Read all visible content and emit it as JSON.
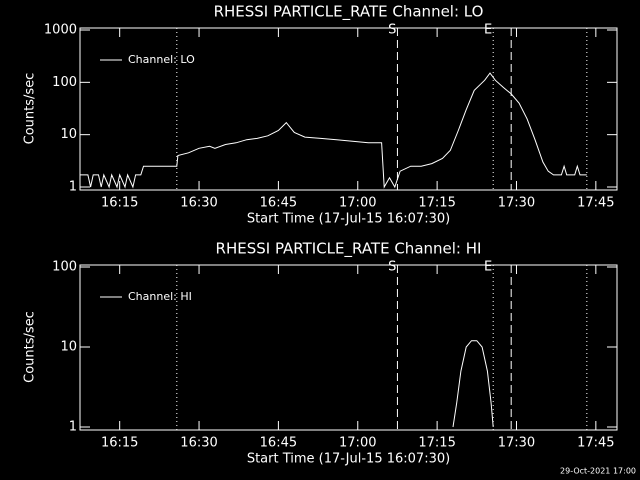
{
  "chart_data": [
    {
      "type": "line",
      "title": "RHESSI PARTICLE_RATE Channel: LO",
      "xlabel": "Start Time (17-Jul-15 16:07:30)",
      "ylabel": "Counts/sec",
      "x": [
        7.5,
        9,
        9.5,
        10,
        11,
        11.5,
        12,
        13,
        13.5,
        14.5,
        15,
        16,
        16.5,
        17.5,
        18,
        19,
        19.5,
        22,
        24,
        25.8,
        26,
        28,
        30,
        32,
        33,
        35,
        37,
        39,
        41,
        43,
        45,
        46.5,
        48,
        50,
        53,
        56,
        59,
        62,
        64.5,
        65,
        66,
        67,
        68,
        70,
        72,
        74,
        76,
        77.5,
        79,
        80.5,
        82,
        84,
        85,
        86,
        87.5,
        89,
        90.5,
        92,
        93.5,
        95,
        96,
        97,
        98.5,
        99,
        99.5,
        101,
        101.5,
        102,
        103.3
      ],
      "series": [
        {
          "name": "Channel: LO",
          "color": "#ffffff",
          "values": [
            1.7,
            1.7,
            1,
            1.7,
            1.7,
            1,
            1.7,
            1,
            1.7,
            1,
            1.7,
            1,
            1.7,
            1,
            1.7,
            1.7,
            2.5,
            2.5,
            2.5,
            2.5,
            4,
            4.5,
            5.5,
            6,
            5.5,
            6.5,
            7,
            8,
            8.5,
            9.5,
            12,
            17,
            11,
            9,
            8.5,
            8,
            7.5,
            7,
            7,
            1,
            1.5,
            1,
            2,
            2.5,
            2.5,
            2.8,
            3.5,
            5,
            12,
            30,
            70,
            110,
            150,
            110,
            80,
            60,
            40,
            20,
            8,
            3,
            2,
            1.7,
            1.7,
            2.5,
            1.7,
            1.7,
            2.5,
            1.7,
            1.7
          ]
        }
      ],
      "xlim": [
        7.5,
        109
      ],
      "ylim": [
        1,
        1000
      ],
      "ylog": true,
      "xticks": [
        {
          "value": 15,
          "label": "16:15"
        },
        {
          "value": 30,
          "label": "16:30"
        },
        {
          "value": 45,
          "label": "16:45"
        },
        {
          "value": 60,
          "label": "17:00"
        },
        {
          "value": 75,
          "label": "17:15"
        },
        {
          "value": 90,
          "label": "17:30"
        },
        {
          "value": 105,
          "label": "17:45"
        }
      ],
      "yticks": [
        1,
        10,
        100,
        1000
      ],
      "annotations": [
        {
          "x": 25.8,
          "style": "dotted"
        },
        {
          "x": 67.5,
          "style": "dashed",
          "label": "S"
        },
        {
          "x": 85.6,
          "style": "dotted",
          "label": "E"
        },
        {
          "x": 89,
          "style": "dashed"
        },
        {
          "x": 103.3,
          "style": "dotted"
        }
      ]
    },
    {
      "type": "line",
      "title": "RHESSI PARTICLE_RATE Channel: HI",
      "xlabel": "Start Time (17-Jul-15 16:07:30)",
      "ylabel": "Counts/sec",
      "x": [
        78,
        78.7,
        79.5,
        80.5,
        81.5,
        82.5,
        83.5,
        84.5,
        85.2,
        85.6
      ],
      "series": [
        {
          "name": "Channel: HI",
          "color": "#ffffff",
          "values": [
            1,
            2,
            5,
            10,
            12,
            12,
            10,
            5,
            2,
            1
          ]
        }
      ],
      "xlim": [
        7.5,
        109
      ],
      "ylim": [
        1,
        100
      ],
      "ylog": true,
      "xticks": [
        {
          "value": 15,
          "label": "16:15"
        },
        {
          "value": 30,
          "label": "16:30"
        },
        {
          "value": 45,
          "label": "16:45"
        },
        {
          "value": 60,
          "label": "17:00"
        },
        {
          "value": 75,
          "label": "17:15"
        },
        {
          "value": 90,
          "label": "17:30"
        },
        {
          "value": 105,
          "label": "17:45"
        }
      ],
      "yticks": [
        1,
        10,
        100
      ],
      "annotations": [
        {
          "x": 25.8,
          "style": "dotted"
        },
        {
          "x": 67.5,
          "style": "dashed",
          "label": "S"
        },
        {
          "x": 85.6,
          "style": "dotted",
          "label": "E"
        },
        {
          "x": 89,
          "style": "dashed"
        },
        {
          "x": 103.3,
          "style": "dotted"
        }
      ]
    }
  ],
  "footer": "29-Oct-2021 17:00"
}
